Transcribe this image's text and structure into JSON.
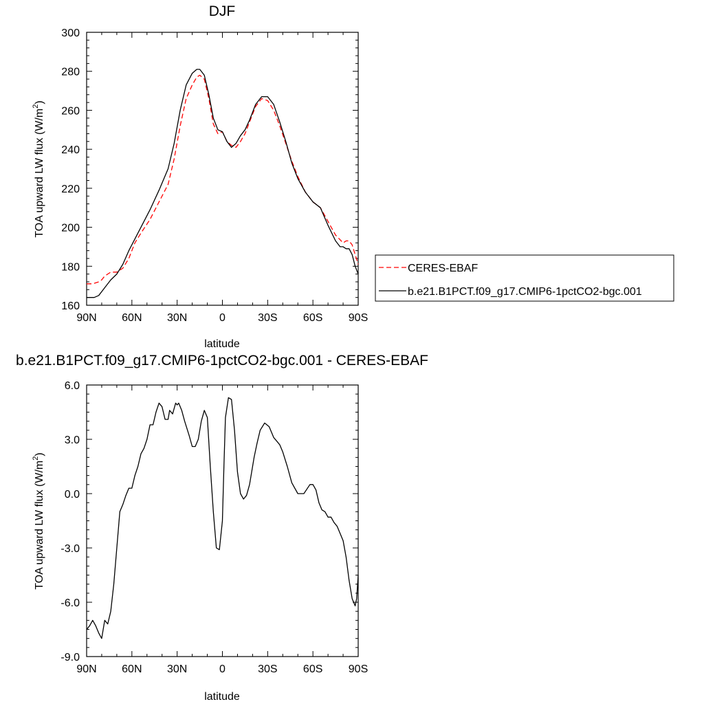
{
  "chart_data": [
    {
      "type": "line",
      "title": "DJF",
      "xlabel": "latitude",
      "ylabel": "TOA upward LW flux (W/m",
      "ylabel_sup": "2",
      "ylabel_close": ")",
      "xlim": [
        90,
        -90
      ],
      "ylim": [
        160,
        300
      ],
      "xticks": [
        {
          "value": 90,
          "label": "90N"
        },
        {
          "value": 60,
          "label": "60N"
        },
        {
          "value": 30,
          "label": "30N"
        },
        {
          "value": 0,
          "label": "0"
        },
        {
          "value": -30,
          "label": "30S"
        },
        {
          "value": -60,
          "label": "60S"
        },
        {
          "value": -90,
          "label": "90S"
        }
      ],
      "yticks": [
        {
          "value": 160,
          "label": "160"
        },
        {
          "value": 180,
          "label": "180"
        },
        {
          "value": 200,
          "label": "200"
        },
        {
          "value": 220,
          "label": "220"
        },
        {
          "value": 240,
          "label": "240"
        },
        {
          "value": 260,
          "label": "260"
        },
        {
          "value": 280,
          "label": "280"
        },
        {
          "value": 300,
          "label": "300"
        }
      ],
      "legend": "right",
      "series": [
        {
          "name": "CERES-EBAF",
          "color": "#ff0000",
          "dash": true,
          "x": [
            90,
            86,
            82,
            80,
            78,
            74,
            70,
            66,
            62,
            58,
            54,
            48,
            42,
            36,
            32,
            28,
            24,
            20,
            17,
            15,
            12,
            9,
            6,
            3,
            0,
            -3,
            -6,
            -9,
            -12,
            -15,
            -18,
            -22,
            -26,
            -30,
            -34,
            -38,
            -42,
            -46,
            -50,
            -55,
            -60,
            -65,
            -70,
            -75,
            -80,
            -82,
            -84,
            -86,
            -88,
            -90
          ],
          "y": [
            171,
            171,
            172,
            173,
            175,
            177,
            177,
            179,
            184,
            192,
            197,
            204,
            213,
            222,
            235,
            252,
            266,
            273,
            277,
            278,
            276,
            266,
            253,
            248,
            249,
            244,
            242,
            241,
            244,
            248,
            254,
            262,
            266,
            265,
            260,
            252,
            243,
            234,
            226,
            218,
            213,
            210,
            203,
            196,
            192,
            193,
            193,
            191,
            186,
            181
          ]
        },
        {
          "name": "b.e21.B1PCT.f09_g17.CMIP6-1pctCO2-bgc.001",
          "color": "#000000",
          "dash": false,
          "x": [
            90,
            85,
            82,
            78,
            74,
            70,
            66,
            62,
            58,
            54,
            48,
            42,
            36,
            32,
            28,
            24,
            20,
            17,
            15,
            12,
            9,
            6,
            3,
            0,
            -3,
            -6,
            -9,
            -12,
            -15,
            -18,
            -22,
            -26,
            -30,
            -34,
            -38,
            -42,
            -46,
            -50,
            -55,
            -60,
            -65,
            -70,
            -75,
            -78,
            -80,
            -82,
            -84,
            -86,
            -88,
            -90
          ],
          "y": [
            164,
            164,
            165,
            169,
            173,
            176,
            181,
            188,
            194,
            200,
            209,
            219,
            230,
            243,
            260,
            273,
            279,
            281,
            281,
            278,
            268,
            256,
            250,
            249,
            244,
            241,
            243,
            247,
            250,
            255,
            263,
            267,
            267,
            263,
            254,
            244,
            233,
            225,
            218,
            213,
            210,
            201,
            193,
            190,
            190,
            189,
            189,
            186,
            180,
            176
          ]
        }
      ]
    },
    {
      "type": "line",
      "title": "b.e21.B1PCT.f09_g17.CMIP6-1pctCO2-bgc.001 - CERES-EBAF",
      "xlabel": "latitude",
      "ylabel": "TOA upward LW flux (W/m",
      "ylabel_sup": "2",
      "ylabel_close": ")",
      "xlim": [
        90,
        -90
      ],
      "ylim": [
        -9,
        6
      ],
      "xticks": [
        {
          "value": 90,
          "label": "90N"
        },
        {
          "value": 60,
          "label": "60N"
        },
        {
          "value": 30,
          "label": "30N"
        },
        {
          "value": 0,
          "label": "0"
        },
        {
          "value": -30,
          "label": "30S"
        },
        {
          "value": -60,
          "label": "60S"
        },
        {
          "value": -90,
          "label": "90S"
        }
      ],
      "yticks": [
        {
          "value": -9,
          "label": "-9.0"
        },
        {
          "value": -6,
          "label": "-6.0"
        },
        {
          "value": -3,
          "label": "-3.0"
        },
        {
          "value": 0,
          "label": "0.0"
        },
        {
          "value": 3,
          "label": "3.0"
        },
        {
          "value": 6,
          "label": "6.0"
        }
      ],
      "series": [
        {
          "name": "",
          "color": "#000000",
          "dash": false,
          "x": [
            90,
            88,
            86,
            84,
            82,
            80,
            78,
            76,
            74,
            72,
            70,
            68,
            66,
            64,
            62,
            60,
            58,
            56,
            54,
            52,
            50,
            48,
            46,
            44,
            42,
            40,
            38,
            36,
            35,
            33,
            31,
            30,
            29,
            27,
            25,
            22,
            20,
            18,
            16,
            14,
            12,
            10,
            8,
            6,
            4,
            2,
            0,
            -1,
            -2,
            -4,
            -6,
            -8,
            -10,
            -12,
            -14,
            -16,
            -18,
            -20,
            -21,
            -23,
            -25,
            -28,
            -31,
            -34,
            -36,
            -38,
            -40,
            -43,
            -46,
            -50,
            -54,
            -58,
            -60,
            -62,
            -64,
            -66,
            -68,
            -70,
            -72,
            -74,
            -76,
            -78,
            -80,
            -82,
            -84,
            -86,
            -88,
            -89,
            -90
          ],
          "y": [
            -7.5,
            -7.3,
            -7.0,
            -7.3,
            -7.7,
            -8.0,
            -7.0,
            -7.2,
            -6.5,
            -5.0,
            -3.0,
            -1.0,
            -0.6,
            -0.1,
            0.3,
            0.3,
            1.0,
            1.5,
            2.2,
            2.5,
            3.0,
            3.8,
            3.8,
            4.5,
            5.0,
            4.8,
            4.1,
            4.1,
            4.6,
            4.4,
            5.0,
            4.9,
            5.0,
            4.6,
            4.0,
            3.2,
            2.6,
            2.6,
            3.0,
            4.0,
            4.6,
            4.2,
            1.5,
            -1.0,
            -3.0,
            -3.1,
            -1.5,
            1.5,
            4.2,
            5.3,
            5.2,
            3.5,
            1.2,
            0.0,
            -0.3,
            -0.1,
            0.5,
            1.5,
            2.0,
            2.8,
            3.5,
            3.9,
            3.7,
            3.1,
            2.9,
            2.7,
            2.3,
            1.5,
            0.6,
            0.0,
            0.0,
            0.5,
            0.5,
            0.2,
            -0.5,
            -0.9,
            -1.0,
            -1.3,
            -1.3,
            -1.6,
            -1.8,
            -2.2,
            -2.6,
            -3.5,
            -4.8,
            -5.8,
            -6.2,
            -5.8,
            -4.5
          ]
        }
      ]
    }
  ]
}
